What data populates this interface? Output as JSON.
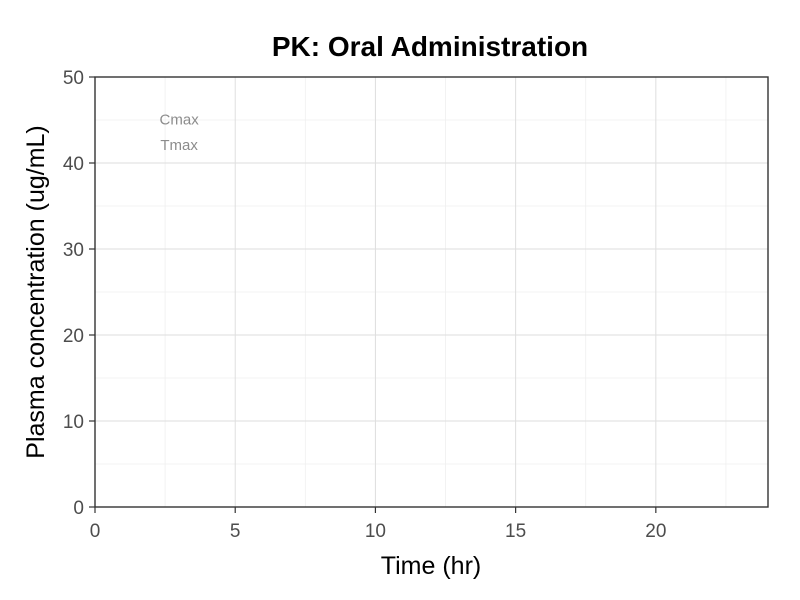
{
  "chart_data": {
    "type": "line",
    "title": "PK: Oral Administration",
    "xlabel": "Time (hr)",
    "ylabel": "Plasma concentration (ug/mL)",
    "xlim": [
      0,
      24
    ],
    "ylim": [
      0,
      50
    ],
    "x_ticks": [
      0,
      5,
      10,
      15,
      20
    ],
    "y_ticks": [
      0,
      10,
      20,
      30,
      40,
      50
    ],
    "x_minor_ticks": [
      2.5,
      7.5,
      12.5,
      17.5,
      22.5
    ],
    "y_minor_ticks": [
      5,
      15,
      25,
      35,
      45
    ],
    "grid": true,
    "series": [],
    "annotations": [
      {
        "text": "Cmax",
        "x": 3,
        "y": 44.5
      },
      {
        "text": "Tmax",
        "x": 3,
        "y": 41.5
      }
    ]
  }
}
